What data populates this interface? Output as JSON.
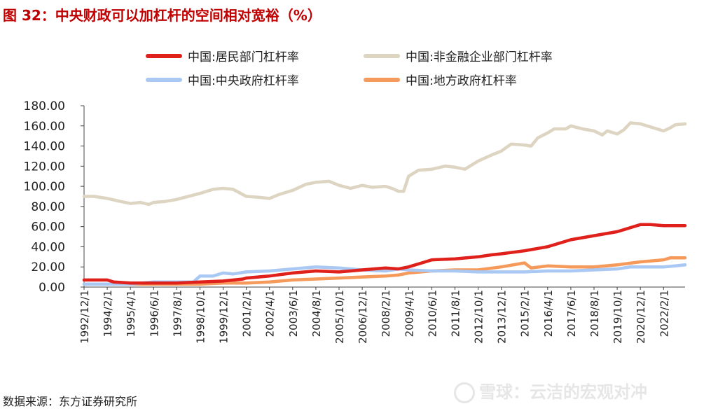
{
  "title": "图 32：中央财政可以加杠杆的空间相对宽裕（%）",
  "source": "数据来源：东方证券研究所",
  "watermark": "雪球：云洁的宏观对冲",
  "colors": {
    "title": "#c00000",
    "household": "#e0201b",
    "nonfinancial": "#ddd5c2",
    "central": "#a9c8f3",
    "local": "#f59a5b"
  },
  "chart_data": {
    "type": "line",
    "title": "",
    "xlabel": "",
    "ylabel": "",
    "ylim": [
      0,
      180
    ],
    "yticks": [
      "0.00",
      "20.00",
      "40.00",
      "60.00",
      "80.00",
      "100.00",
      "120.00",
      "140.00",
      "160.00",
      "180.00"
    ],
    "x_ticks": [
      "1992/12/1",
      "1994/2/1",
      "1995/4/1",
      "1996/6/1",
      "1997/8/1",
      "1998/10/1",
      "1999/12/1",
      "2001/2/1",
      "2002/4/1",
      "2003/6/1",
      "2004/8/1",
      "2005/10/1",
      "2006/12/1",
      "2008/2/1",
      "2009/4/1",
      "2010/6/1",
      "2011/8/1",
      "2012/10/1",
      "2013/12/1",
      "2015/2/1",
      "2016/4/1",
      "2017/6/1",
      "2018/8/1",
      "2019/10/1",
      "2020/12/1",
      "2022/2/1"
    ],
    "x_range": [
      "1992/12/1",
      "2023/3/1"
    ],
    "legend": "top",
    "series": [
      {
        "name": "中国:居民部门杠杆率",
        "color": "#e0201b",
        "points": [
          [
            "1992/12/1",
            7
          ],
          [
            "1993/6/1",
            7
          ],
          [
            "1994/2/1",
            7
          ],
          [
            "1994/6/1",
            5
          ],
          [
            "1995/4/1",
            4
          ],
          [
            "1996/6/1",
            4
          ],
          [
            "1997/8/1",
            4
          ],
          [
            "1998/10/1",
            5
          ],
          [
            "1999/12/1",
            6
          ],
          [
            "2000/12/1",
            8
          ],
          [
            "2001/2/1",
            9
          ],
          [
            "2002/4/1",
            11
          ],
          [
            "2003/6/1",
            14
          ],
          [
            "2004/8/1",
            16
          ],
          [
            "2005/10/1",
            15
          ],
          [
            "2006/12/1",
            17
          ],
          [
            "2008/2/1",
            19
          ],
          [
            "2008/10/1",
            18
          ],
          [
            "2009/4/1",
            20
          ],
          [
            "2009/12/1",
            24
          ],
          [
            "2010/6/1",
            27
          ],
          [
            "2011/8/1",
            28
          ],
          [
            "2012/10/1",
            30
          ],
          [
            "2013/6/1",
            32
          ],
          [
            "2013/12/1",
            33
          ],
          [
            "2015/2/1",
            36
          ],
          [
            "2016/4/1",
            40
          ],
          [
            "2017/6/1",
            47
          ],
          [
            "2018/1/1",
            49
          ],
          [
            "2018/8/1",
            51
          ],
          [
            "2019/10/1",
            55
          ],
          [
            "2020/6/1",
            59
          ],
          [
            "2020/12/1",
            62
          ],
          [
            "2021/6/1",
            62
          ],
          [
            "2022/2/1",
            61
          ],
          [
            "2022/9/1",
            61
          ],
          [
            "2023/3/1",
            61
          ]
        ]
      },
      {
        "name": "中国:非金融企业部门杠杆率",
        "color": "#ddd5c2",
        "points": [
          [
            "1992/12/1",
            90
          ],
          [
            "1993/6/1",
            90
          ],
          [
            "1994/2/1",
            88
          ],
          [
            "1994/10/1",
            85
          ],
          [
            "1995/4/1",
            83
          ],
          [
            "1995/10/1",
            84
          ],
          [
            "1996/3/1",
            82
          ],
          [
            "1996/6/1",
            84
          ],
          [
            "1997/1/1",
            85
          ],
          [
            "1997/8/1",
            87
          ],
          [
            "1998/10/1",
            93
          ],
          [
            "1999/6/1",
            97
          ],
          [
            "1999/12/1",
            98
          ],
          [
            "2000/6/1",
            97
          ],
          [
            "2001/2/1",
            90
          ],
          [
            "2001/10/1",
            89
          ],
          [
            "2002/4/1",
            88
          ],
          [
            "2002/10/1",
            92
          ],
          [
            "2003/6/1",
            96
          ],
          [
            "2004/2/1",
            102
          ],
          [
            "2004/8/1",
            104
          ],
          [
            "2005/4/1",
            105
          ],
          [
            "2005/10/1",
            101
          ],
          [
            "2006/5/1",
            98
          ],
          [
            "2006/12/1",
            101
          ],
          [
            "2007/6/1",
            99
          ],
          [
            "2008/2/1",
            100
          ],
          [
            "2008/6/1",
            98
          ],
          [
            "2008/10/1",
            95
          ],
          [
            "2009/1/1",
            95
          ],
          [
            "2009/4/1",
            110
          ],
          [
            "2009/10/1",
            116
          ],
          [
            "2010/6/1",
            117
          ],
          [
            "2011/2/1",
            120
          ],
          [
            "2011/8/1",
            119
          ],
          [
            "2012/2/1",
            117
          ],
          [
            "2012/10/1",
            125
          ],
          [
            "2013/6/1",
            131
          ],
          [
            "2013/12/1",
            135
          ],
          [
            "2014/6/1",
            142
          ],
          [
            "2015/2/1",
            141
          ],
          [
            "2015/6/1",
            140
          ],
          [
            "2015/10/1",
            148
          ],
          [
            "2016/4/1",
            153
          ],
          [
            "2016/8/1",
            157
          ],
          [
            "2017/3/1",
            157
          ],
          [
            "2017/6/1",
            160
          ],
          [
            "2018/1/1",
            157
          ],
          [
            "2018/8/1",
            155
          ],
          [
            "2019/1/1",
            151
          ],
          [
            "2019/4/1",
            155
          ],
          [
            "2019/10/1",
            152
          ],
          [
            "2020/2/1",
            156
          ],
          [
            "2020/6/1",
            163
          ],
          [
            "2020/12/1",
            162
          ],
          [
            "2021/6/1",
            159
          ],
          [
            "2022/2/1",
            155
          ],
          [
            "2022/6/1",
            158
          ],
          [
            "2022/9/1",
            161
          ],
          [
            "2023/3/1",
            162
          ]
        ]
      },
      {
        "name": "中国:中央政府杠杆率",
        "color": "#a9c8f3",
        "points": [
          [
            "1992/12/1",
            3
          ],
          [
            "1994/2/1",
            3
          ],
          [
            "1995/4/1",
            3
          ],
          [
            "1996/6/1",
            5
          ],
          [
            "1997/8/1",
            5
          ],
          [
            "1998/6/1",
            5
          ],
          [
            "1998/10/1",
            11
          ],
          [
            "1999/6/1",
            11
          ],
          [
            "1999/12/1",
            14
          ],
          [
            "2000/6/1",
            13
          ],
          [
            "2001/2/1",
            15
          ],
          [
            "2002/4/1",
            16
          ],
          [
            "2003/6/1",
            18
          ],
          [
            "2004/8/1",
            20
          ],
          [
            "2005/10/1",
            19
          ],
          [
            "2006/12/1",
            17
          ],
          [
            "2008/2/1",
            16
          ],
          [
            "2008/10/1",
            18
          ],
          [
            "2009/4/1",
            17
          ],
          [
            "2010/6/1",
            16
          ],
          [
            "2011/8/1",
            16
          ],
          [
            "2012/10/1",
            15
          ],
          [
            "2013/12/1",
            15
          ],
          [
            "2015/2/1",
            15
          ],
          [
            "2016/4/1",
            16
          ],
          [
            "2017/6/1",
            16
          ],
          [
            "2018/8/1",
            17
          ],
          [
            "2019/10/1",
            18
          ],
          [
            "2020/6/1",
            20
          ],
          [
            "2020/12/1",
            20
          ],
          [
            "2022/2/1",
            20
          ],
          [
            "2022/9/1",
            21
          ],
          [
            "2023/3/1",
            22
          ]
        ]
      },
      {
        "name": "中国:地方政府杠杆率",
        "color": "#f59a5b",
        "points": [
          [
            "1992/12/1",
            3
          ],
          [
            "1994/2/1",
            3
          ],
          [
            "1995/4/1",
            3
          ],
          [
            "1996/6/1",
            3
          ],
          [
            "1997/8/1",
            3
          ],
          [
            "1998/10/1",
            3
          ],
          [
            "1999/12/1",
            4
          ],
          [
            "2001/2/1",
            4
          ],
          [
            "2002/4/1",
            5
          ],
          [
            "2003/6/1",
            7
          ],
          [
            "2004/8/1",
            8
          ],
          [
            "2005/10/1",
            9
          ],
          [
            "2006/12/1",
            10
          ],
          [
            "2008/2/1",
            11
          ],
          [
            "2008/10/1",
            12
          ],
          [
            "2009/4/1",
            14
          ],
          [
            "2010/6/1",
            16
          ],
          [
            "2011/8/1",
            17
          ],
          [
            "2012/10/1",
            17
          ],
          [
            "2013/12/1",
            20
          ],
          [
            "2015/2/1",
            24
          ],
          [
            "2015/6/1",
            19
          ],
          [
            "2016/4/1",
            21
          ],
          [
            "2017/6/1",
            20
          ],
          [
            "2018/8/1",
            20
          ],
          [
            "2019/10/1",
            22
          ],
          [
            "2020/12/1",
            25
          ],
          [
            "2022/2/1",
            27
          ],
          [
            "2022/6/1",
            29
          ],
          [
            "2023/3/1",
            29
          ]
        ]
      }
    ]
  }
}
